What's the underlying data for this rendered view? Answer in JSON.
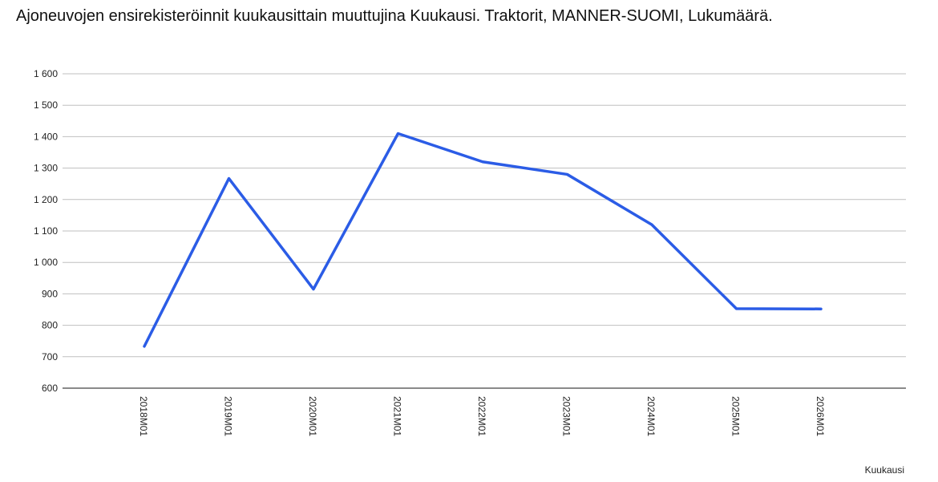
{
  "chart_data": {
    "type": "line",
    "title": "Ajoneuvojen ensirekisteröinnit kuukausittain muuttujina Kuukausi. Traktorit, MANNER-SUOMI, Lukumäärä.",
    "xlabel": "Kuukausi",
    "ylabel": "",
    "categories": [
      "2018M01",
      "2019M01",
      "2020M01",
      "2021M01",
      "2022M01",
      "2023M01",
      "2024M01",
      "2025M01",
      "2026M01"
    ],
    "series": [
      {
        "name": "",
        "color": "#2b5ce6",
        "values": [
          733,
          1267,
          915,
          1410,
          1320,
          1280,
          1120,
          853,
          852
        ]
      }
    ],
    "ylim": [
      600,
      1600
    ],
    "yticks": [
      600,
      700,
      800,
      900,
      1000,
      1100,
      1200,
      1300,
      1400,
      1500,
      1600
    ],
    "ytick_labels": [
      "600",
      "700",
      "800",
      "900",
      "1 000",
      "1 100",
      "1 200",
      "1 300",
      "1 400",
      "1 500",
      "1 600"
    ],
    "grid": true,
    "gridline_color": "#bfbfbf",
    "legend": "none"
  }
}
